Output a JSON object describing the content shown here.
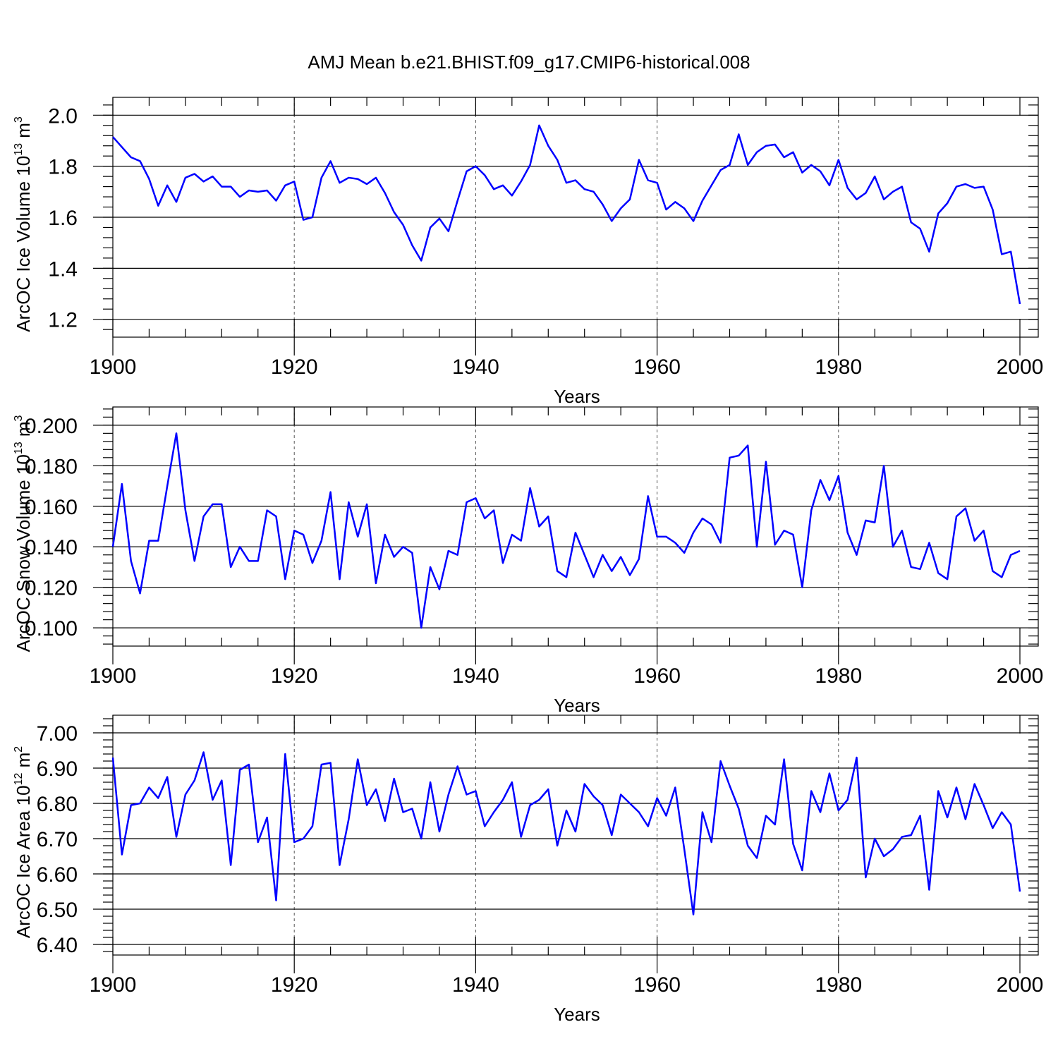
{
  "title": "AMJ Mean b.e21.BHIST.f09_g17.CMIP6-historical.008",
  "chart_data": [
    {
      "type": "line",
      "ylabel": "ArcOC Ice Volume 10",
      "ylabel_sup": "13",
      "ylabel_unit": " m",
      "ylabel_unit_sup": "3",
      "xlabel": "Years",
      "xlim": [
        1900,
        2000
      ],
      "ylim": [
        1.13,
        2.07
      ],
      "yticks": [
        1.2,
        1.4,
        1.6,
        1.8,
        2.0
      ],
      "ytick_labels": [
        "1.2",
        "1.4",
        "1.6",
        "1.8",
        "2.0"
      ],
      "xticks": [
        1900,
        1920,
        1940,
        1960,
        1980,
        2000
      ],
      "xtick_labels": [
        "1900",
        "1920",
        "1940",
        "1960",
        "1980",
        "2000"
      ],
      "grid_x": [
        1920,
        1940,
        1960,
        1980
      ],
      "series": [
        {
          "name": "ArcOC Ice Volume",
          "color": "#0000ff",
          "x_start": 1900,
          "values": [
            1.915,
            1.875,
            1.835,
            1.82,
            1.75,
            1.645,
            1.725,
            1.66,
            1.755,
            1.77,
            1.74,
            1.76,
            1.72,
            1.72,
            1.68,
            1.705,
            1.7,
            1.705,
            1.665,
            1.725,
            1.74,
            1.59,
            1.6,
            1.755,
            1.82,
            1.735,
            1.755,
            1.75,
            1.73,
            1.755,
            1.695,
            1.62,
            1.57,
            1.49,
            1.43,
            1.56,
            1.595,
            1.545,
            1.665,
            1.78,
            1.8,
            1.765,
            1.71,
            1.725,
            1.685,
            1.74,
            1.805,
            1.96,
            1.88,
            1.825,
            1.735,
            1.745,
            1.71,
            1.7,
            1.65,
            1.585,
            1.635,
            1.67,
            1.825,
            1.745,
            1.735,
            1.63,
            1.66,
            1.635,
            1.585,
            1.665,
            1.725,
            1.785,
            1.805,
            1.925,
            1.805,
            1.855,
            1.88,
            1.885,
            1.835,
            1.855,
            1.775,
            1.805,
            1.78,
            1.725,
            1.825,
            1.715,
            1.67,
            1.695,
            1.76,
            1.67,
            1.7,
            1.72,
            1.58,
            1.555,
            1.465,
            1.615,
            1.655,
            1.72,
            1.73,
            1.715,
            1.72,
            1.63,
            1.455,
            1.465,
            1.26
          ]
        }
      ]
    },
    {
      "type": "line",
      "ylabel": "ArcOC Snow Volume 10",
      "ylabel_sup": "13",
      "ylabel_unit": " m",
      "ylabel_unit_sup": "3",
      "xlabel": "Years",
      "xlim": [
        1900,
        2000
      ],
      "ylim": [
        0.091,
        0.209
      ],
      "yticks": [
        0.1,
        0.12,
        0.14,
        0.16,
        0.18,
        0.2
      ],
      "ytick_labels": [
        "0.100",
        "0.120",
        "0.140",
        "0.160",
        "0.180",
        "0.200"
      ],
      "xticks": [
        1900,
        1920,
        1940,
        1960,
        1980,
        2000
      ],
      "xtick_labels": [
        "1900",
        "1920",
        "1940",
        "1960",
        "1980",
        "2000"
      ],
      "grid_x": [
        1920,
        1940,
        1960,
        1980
      ],
      "series": [
        {
          "name": "ArcOC Snow Volume",
          "color": "#0000ff",
          "x_start": 1900,
          "values": [
            0.14,
            0.171,
            0.133,
            0.117,
            0.143,
            0.143,
            0.17,
            0.196,
            0.158,
            0.133,
            0.155,
            0.161,
            0.161,
            0.13,
            0.14,
            0.133,
            0.133,
            0.158,
            0.155,
            0.124,
            0.148,
            0.146,
            0.132,
            0.143,
            0.167,
            0.124,
            0.162,
            0.145,
            0.161,
            0.122,
            0.146,
            0.135,
            0.14,
            0.137,
            0.1,
            0.13,
            0.119,
            0.138,
            0.136,
            0.162,
            0.164,
            0.154,
            0.158,
            0.132,
            0.146,
            0.143,
            0.169,
            0.15,
            0.155,
            0.128,
            0.125,
            0.147,
            0.136,
            0.125,
            0.136,
            0.128,
            0.135,
            0.126,
            0.134,
            0.165,
            0.145,
            0.145,
            0.142,
            0.137,
            0.147,
            0.154,
            0.151,
            0.142,
            0.184,
            0.185,
            0.19,
            0.14,
            0.182,
            0.141,
            0.148,
            0.146,
            0.12,
            0.158,
            0.173,
            0.163,
            0.175,
            0.147,
            0.136,
            0.153,
            0.152,
            0.18,
            0.14,
            0.148,
            0.13,
            0.129,
            0.142,
            0.127,
            0.124,
            0.155,
            0.159,
            0.143,
            0.148,
            0.128,
            0.125,
            0.136,
            0.138
          ]
        }
      ]
    },
    {
      "type": "line",
      "ylabel": "ArcOC Ice Area 10",
      "ylabel_sup": "12",
      "ylabel_unit": " m",
      "ylabel_unit_sup": "2",
      "xlabel": "Years",
      "xlim": [
        1900,
        2000
      ],
      "ylim": [
        6.37,
        7.05
      ],
      "yticks": [
        6.4,
        6.5,
        6.6,
        6.7,
        6.8,
        6.9,
        7.0
      ],
      "ytick_labels": [
        "6.40",
        "6.50",
        "6.60",
        "6.70",
        "6.80",
        "6.90",
        "7.00"
      ],
      "xticks": [
        1900,
        1920,
        1940,
        1960,
        1980,
        2000
      ],
      "xtick_labels": [
        "1900",
        "1920",
        "1940",
        "1960",
        "1980",
        "2000"
      ],
      "grid_x": [
        1920,
        1940,
        1960,
        1980
      ],
      "series": [
        {
          "name": "ArcOC Ice Area",
          "color": "#0000ff",
          "x_start": 1900,
          "values": [
            6.93,
            6.655,
            6.795,
            6.8,
            6.845,
            6.815,
            6.875,
            6.705,
            6.825,
            6.865,
            6.945,
            6.81,
            6.865,
            6.625,
            6.895,
            6.91,
            6.69,
            6.76,
            6.525,
            6.94,
            6.69,
            6.7,
            6.735,
            6.91,
            6.915,
            6.625,
            6.755,
            6.925,
            6.795,
            6.84,
            6.75,
            6.87,
            6.775,
            6.785,
            6.7,
            6.86,
            6.72,
            6.825,
            6.905,
            6.825,
            6.835,
            6.735,
            6.775,
            6.81,
            6.86,
            6.705,
            6.795,
            6.81,
            6.84,
            6.68,
            6.78,
            6.72,
            6.855,
            6.82,
            6.795,
            6.71,
            6.825,
            6.8,
            6.775,
            6.735,
            6.815,
            6.765,
            6.845,
            6.67,
            6.485,
            6.775,
            6.69,
            6.92,
            6.85,
            6.785,
            6.68,
            6.645,
            6.765,
            6.74,
            6.925,
            6.685,
            6.61,
            6.835,
            6.775,
            6.885,
            6.78,
            6.81,
            6.93,
            6.59,
            6.7,
            6.65,
            6.67,
            6.705,
            6.71,
            6.765,
            6.555,
            6.835,
            6.76,
            6.845,
            6.755,
            6.855,
            6.795,
            6.73,
            6.775,
            6.74,
            6.55
          ]
        }
      ]
    }
  ]
}
